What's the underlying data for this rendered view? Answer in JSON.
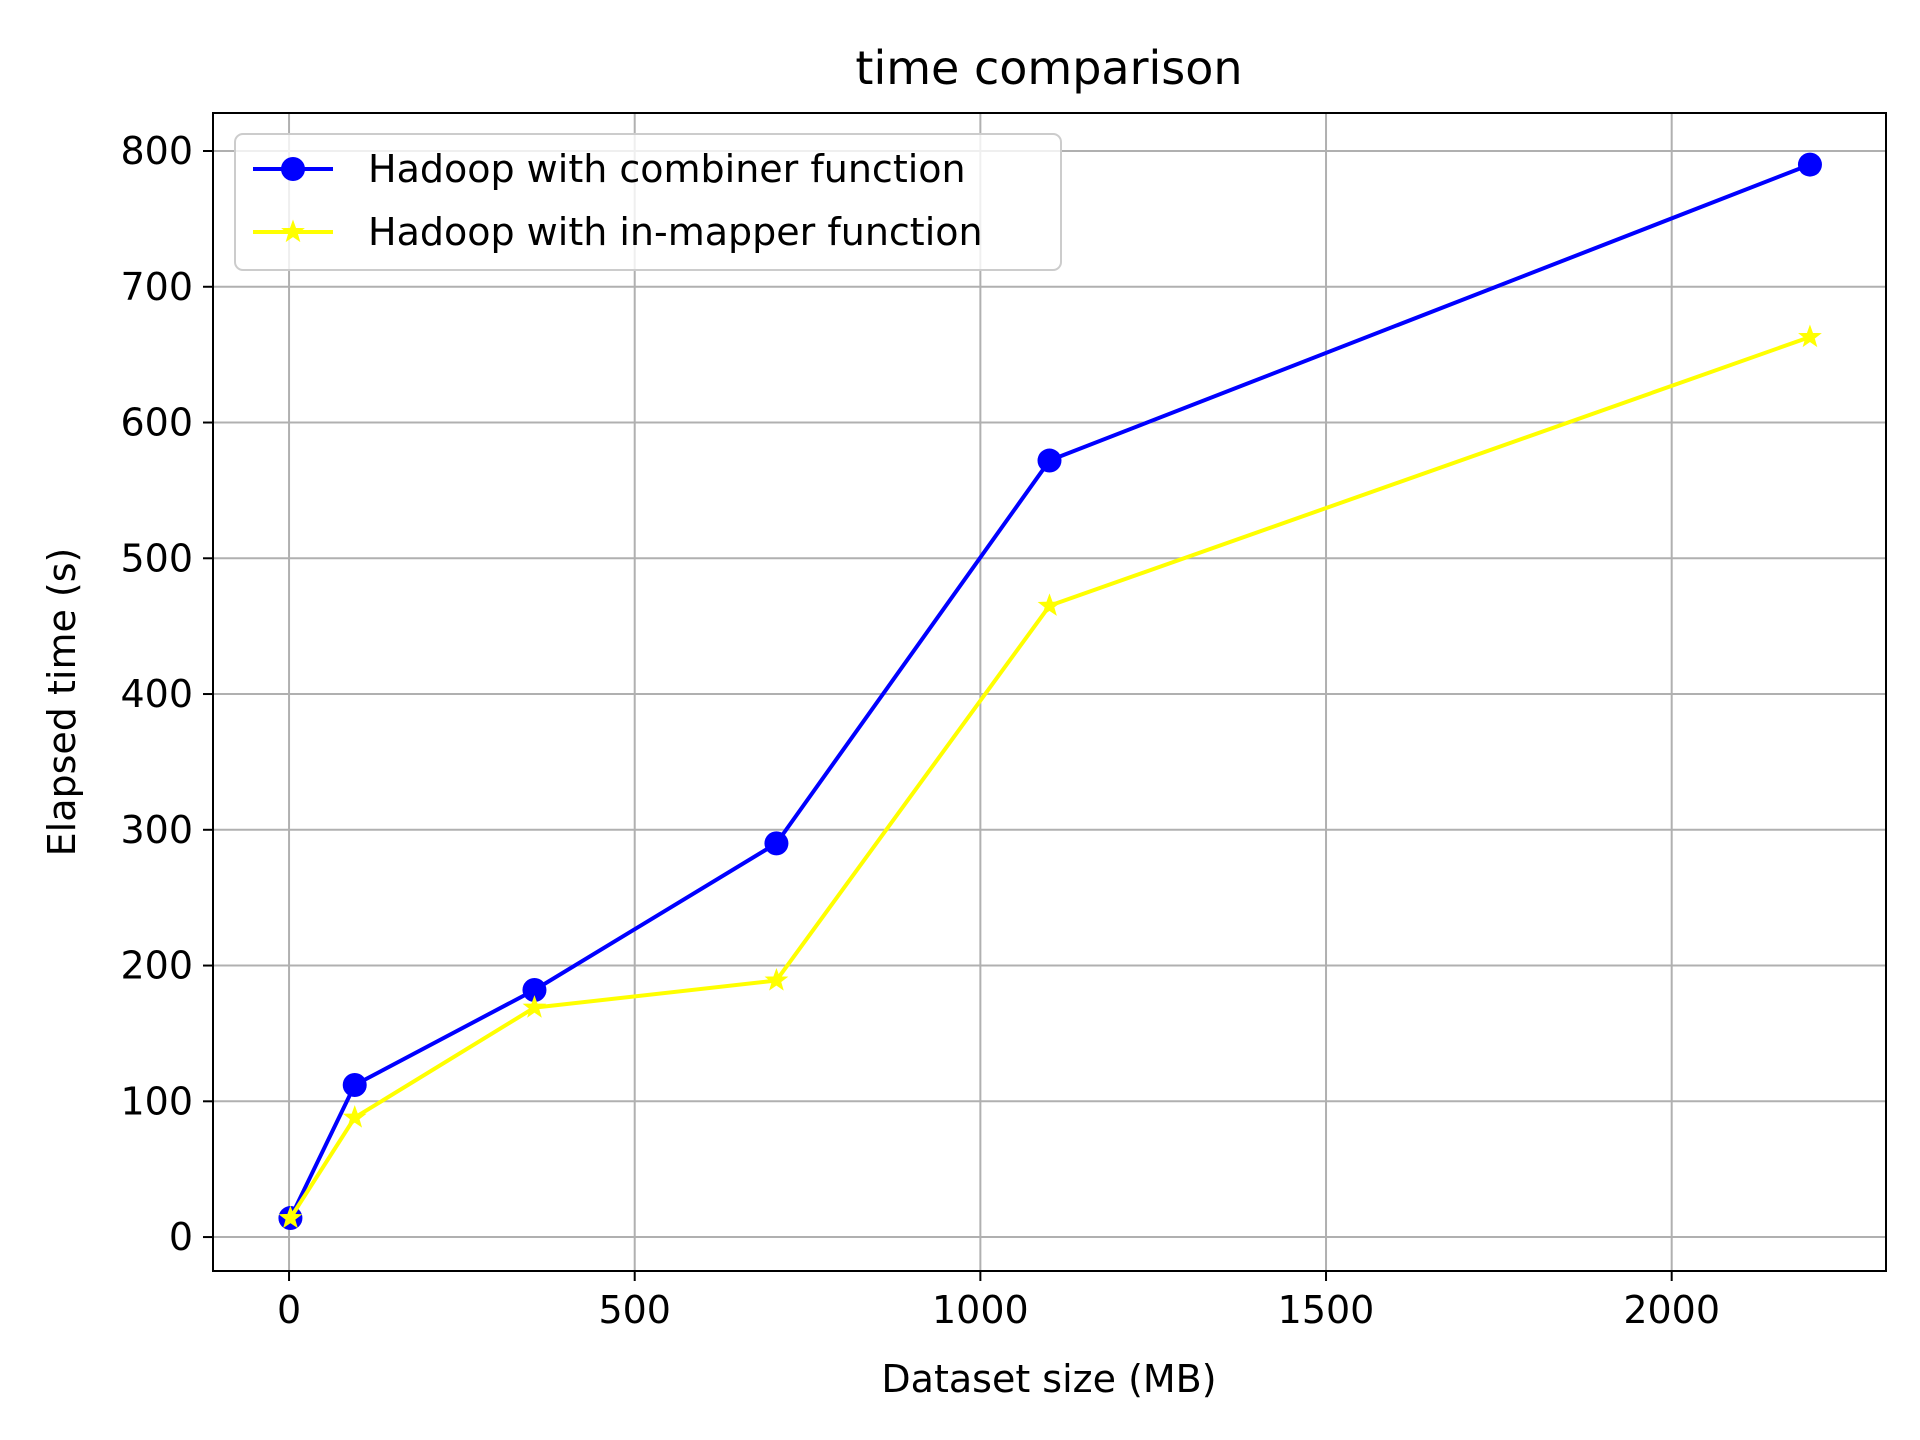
{
  "chart_data": {
    "type": "line",
    "title": "time comparison",
    "xlabel": "Dataset size (MB)",
    "ylabel": "Elapsed time (s)",
    "xlim": [
      -110,
      2310
    ],
    "ylim": [
      -25,
      828
    ],
    "xticks": [
      0,
      500,
      1000,
      1500,
      2000
    ],
    "yticks": [
      0,
      100,
      200,
      300,
      400,
      500,
      600,
      700,
      800
    ],
    "xtick_labels": [
      "0",
      "500",
      "1000",
      "1500",
      "2000"
    ],
    "ytick_labels": [
      "0",
      "100",
      "200",
      "300",
      "400",
      "500",
      "600",
      "700",
      "800"
    ],
    "grid": true,
    "legend_position": "upper-left",
    "series": [
      {
        "name": "Hadoop with combiner function",
        "color": "#0000ff",
        "marker": "circle",
        "x": [
          2,
          95,
          355,
          705,
          1100,
          2200
        ],
        "y": [
          14,
          112,
          182,
          290,
          572,
          790
        ]
      },
      {
        "name": "Hadoop with in-mapper function",
        "color": "#ffff00",
        "marker": "star",
        "x": [
          2,
          95,
          355,
          705,
          1100,
          2200
        ],
        "y": [
          14,
          88,
          169,
          189,
          465,
          663
        ]
      }
    ]
  }
}
